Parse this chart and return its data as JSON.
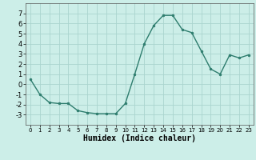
{
  "x": [
    0,
    1,
    2,
    3,
    4,
    5,
    6,
    7,
    8,
    9,
    10,
    11,
    12,
    13,
    14,
    15,
    16,
    17,
    18,
    19,
    20,
    21,
    22,
    23
  ],
  "y": [
    0.5,
    -1.0,
    -1.8,
    -1.9,
    -1.9,
    -2.6,
    -2.8,
    -2.9,
    -2.9,
    -2.9,
    -1.9,
    1.0,
    4.0,
    5.8,
    6.8,
    6.8,
    5.4,
    5.1,
    3.3,
    1.5,
    1.0,
    2.9,
    2.6,
    2.9
  ],
  "line_color": "#2e7d6e",
  "marker": "o",
  "markersize": 2.0,
  "linewidth": 1.0,
  "xlabel": "Humidex (Indice chaleur)",
  "xlabel_fontsize": 7,
  "ylim": [
    -4,
    8
  ],
  "xlim": [
    -0.5,
    23.5
  ],
  "yticks": [
    -3,
    -2,
    -1,
    0,
    1,
    2,
    3,
    4,
    5,
    6,
    7
  ],
  "xticks": [
    0,
    1,
    2,
    3,
    4,
    5,
    6,
    7,
    8,
    9,
    10,
    11,
    12,
    13,
    14,
    15,
    16,
    17,
    18,
    19,
    20,
    21,
    22,
    23
  ],
  "bg_color": "#cceee8",
  "grid_color": "#aad4ce",
  "ytick_fontsize": 6,
  "xtick_fontsize": 5
}
